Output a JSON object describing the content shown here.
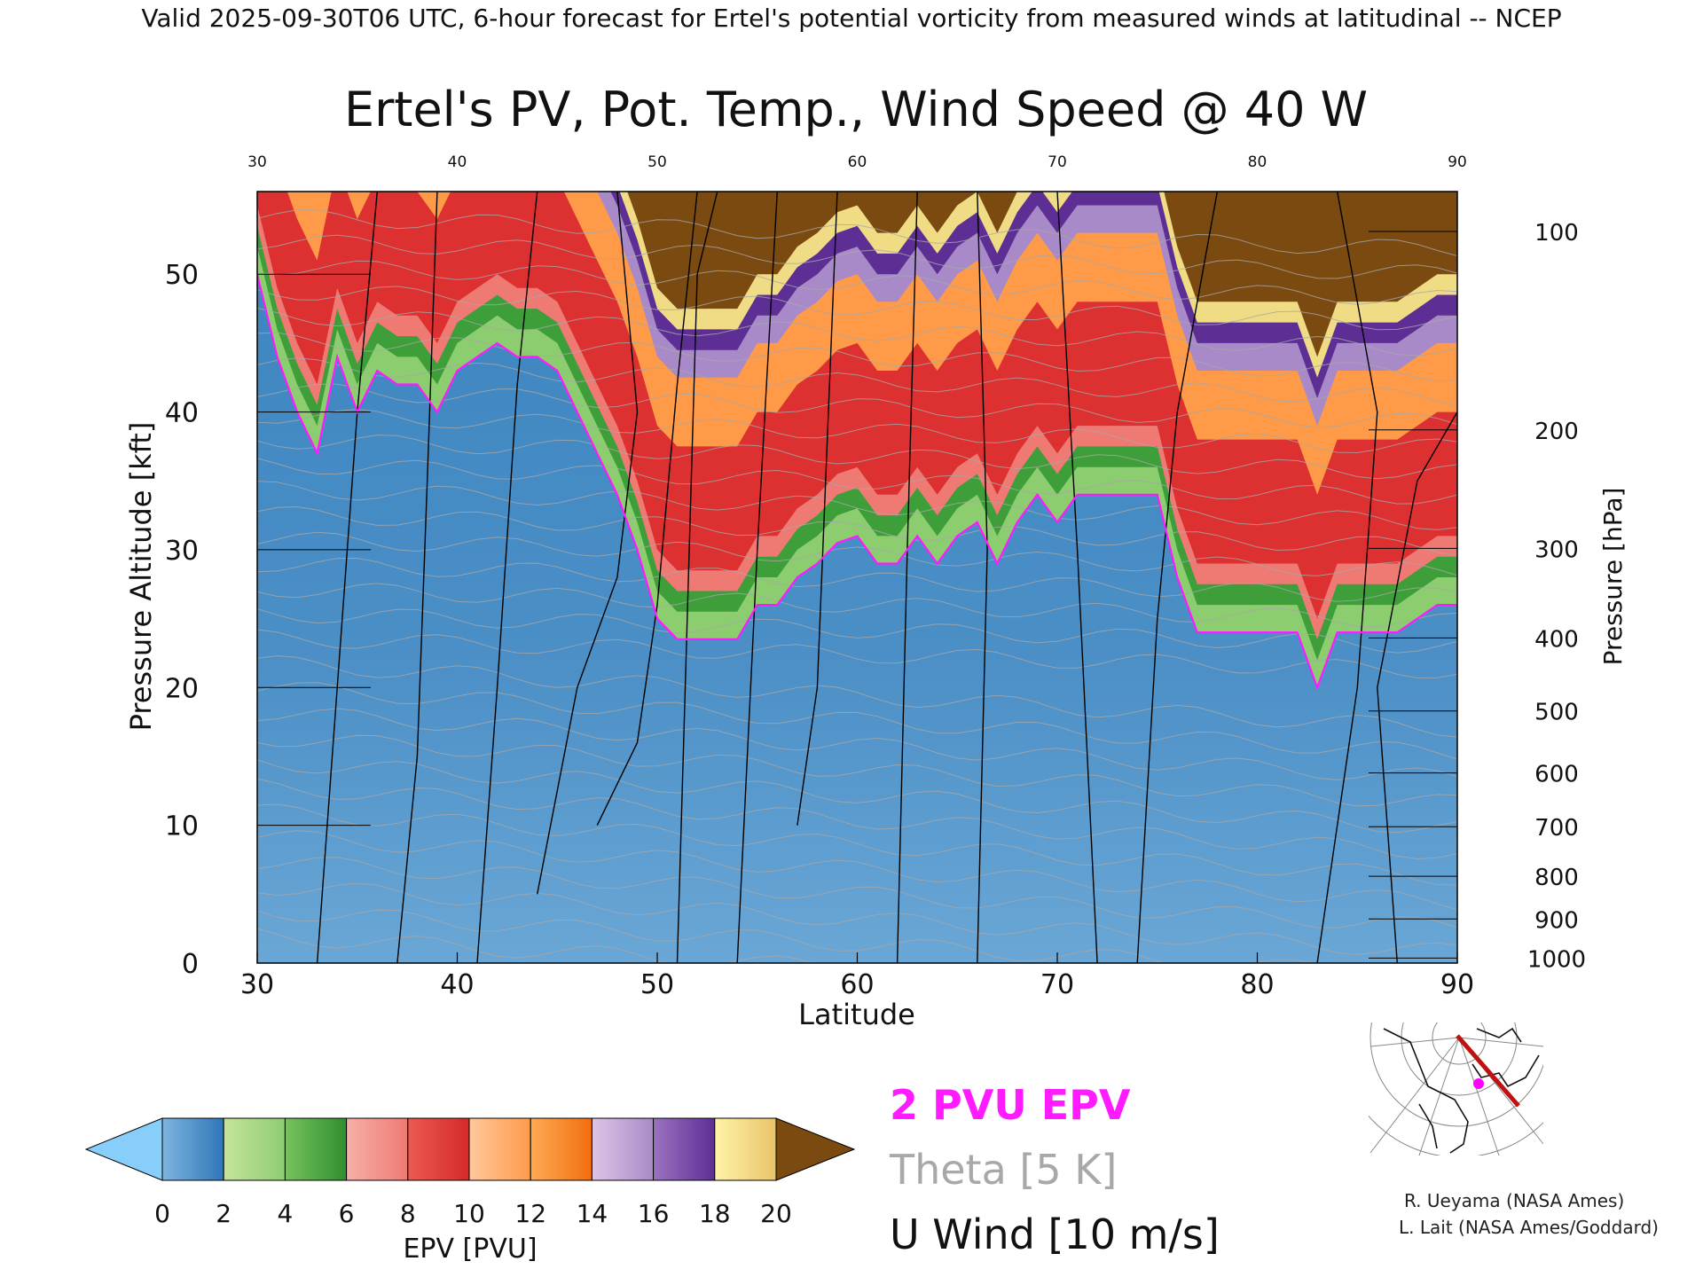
{
  "header": {
    "caption": "Valid 2025-09-30T06 UTC, 6-hour forecast for Ertel's potential vorticity from measured winds at latitudinal -- NCEP"
  },
  "chart_data": {
    "type": "heatmap",
    "title": "Ertel's PV, Pot. Temp., Wind Speed @ 40 W",
    "xlabel": "Latitude",
    "ylabel": "Pressure Altitude [kft]",
    "ylabel_right": "Pressure [hPa]",
    "xlim": [
      30,
      90
    ],
    "ylim": [
      0,
      56
    ],
    "x_ticks": [
      30,
      40,
      50,
      60,
      70,
      80,
      90
    ],
    "y_ticks": [
      0,
      10,
      20,
      30,
      40,
      50
    ],
    "pressure_ticks": [
      {
        "hpa": 100,
        "kft": 53.1
      },
      {
        "hpa": 200,
        "kft": 38.7
      },
      {
        "hpa": 300,
        "kft": 30.1
      },
      {
        "hpa": 400,
        "kft": 23.6
      },
      {
        "hpa": 500,
        "kft": 18.3
      },
      {
        "hpa": 600,
        "kft": 13.8
      },
      {
        "hpa": 700,
        "kft": 9.9
      },
      {
        "hpa": 800,
        "kft": 6.3
      },
      {
        "hpa": 900,
        "kft": 3.2
      },
      {
        "hpa": 1000,
        "kft": 0.36
      }
    ],
    "pv2_boundary_kft": [
      [
        30,
        50
      ],
      [
        31,
        44
      ],
      [
        32,
        40
      ],
      [
        33,
        37
      ],
      [
        34,
        44
      ],
      [
        35,
        40
      ],
      [
        36,
        43
      ],
      [
        37,
        42
      ],
      [
        38,
        42
      ],
      [
        39,
        40
      ],
      [
        40,
        43
      ],
      [
        41,
        44
      ],
      [
        42,
        45
      ],
      [
        43,
        44
      ],
      [
        44,
        44
      ],
      [
        45,
        43
      ],
      [
        46,
        40
      ],
      [
        47,
        37
      ],
      [
        48,
        34
      ],
      [
        49,
        30
      ],
      [
        50,
        25
      ],
      [
        51,
        23.5
      ],
      [
        52,
        23.5
      ],
      [
        53,
        23.5
      ],
      [
        54,
        23.5
      ],
      [
        55,
        26
      ],
      [
        56,
        26
      ],
      [
        57,
        28
      ],
      [
        58,
        29
      ],
      [
        59,
        30.5
      ],
      [
        60,
        31
      ],
      [
        61,
        29
      ],
      [
        62,
        29
      ],
      [
        63,
        31
      ],
      [
        64,
        29
      ],
      [
        65,
        31
      ],
      [
        66,
        32
      ],
      [
        67,
        29
      ],
      [
        68,
        32
      ],
      [
        69,
        34
      ],
      [
        70,
        32
      ],
      [
        71,
        34
      ],
      [
        72,
        34
      ],
      [
        73,
        34
      ],
      [
        74,
        34
      ],
      [
        75,
        34
      ],
      [
        76,
        28
      ],
      [
        77,
        24
      ],
      [
        78,
        24
      ],
      [
        79,
        24
      ],
      [
        80,
        24
      ],
      [
        81,
        24
      ],
      [
        82,
        24
      ],
      [
        83,
        20
      ],
      [
        84,
        24
      ],
      [
        85,
        24
      ],
      [
        86,
        24
      ],
      [
        87,
        24
      ],
      [
        88,
        25
      ],
      [
        89,
        26
      ],
      [
        90,
        26
      ]
    ],
    "colorbar": {
      "label": "EPV [PVU]",
      "ticks": [
        0,
        2,
        4,
        6,
        8,
        10,
        12,
        14,
        16,
        18,
        20
      ],
      "bins": [
        {
          "from": 0,
          "to": 2,
          "colors": [
            "#7fb4e0",
            "#2f77b8"
          ]
        },
        {
          "from": 2,
          "to": 4,
          "colors": [
            "#c5e49a",
            "#8fcc73"
          ]
        },
        {
          "from": 4,
          "to": 6,
          "colors": [
            "#78c25e",
            "#2f8f2f"
          ]
        },
        {
          "from": 6,
          "to": 8,
          "colors": [
            "#f6b0a8",
            "#ee7b73"
          ]
        },
        {
          "from": 8,
          "to": 10,
          "colors": [
            "#ec5a50",
            "#d62a2a"
          ]
        },
        {
          "from": 10,
          "to": 12,
          "colors": [
            "#ffc89c",
            "#ff9a4c"
          ]
        },
        {
          "from": 12,
          "to": 14,
          "colors": [
            "#ffab54",
            "#f26d0f"
          ]
        },
        {
          "from": 14,
          "to": 16,
          "colors": [
            "#dcc5e6",
            "#a98ac8"
          ]
        },
        {
          "from": 16,
          "to": 18,
          "colors": [
            "#9c72c0",
            "#5d2f95"
          ]
        },
        {
          "from": 18,
          "to": 20,
          "colors": [
            "#fff3a8",
            "#e8c46a"
          ]
        }
      ],
      "under_color": "#87cefa",
      "over_color": "#7a4a10"
    }
  },
  "legend": {
    "pv2_label": "2 PVU EPV",
    "theta_label": "Theta [5 K]",
    "uwind_label": "U Wind [10 m/s]"
  },
  "colors": {
    "pv2": "#ff1aff",
    "theta": "#a8a8a8",
    "uwind": "#000000",
    "map_track": "#c01010",
    "map_marker": "#ff00ff"
  },
  "map": {
    "icon": "polar-map-icon"
  },
  "credits": {
    "line1": "R. Ueyama (NASA Ames)",
    "line2": "L. Lait (NASA Ames/Goddard)"
  }
}
